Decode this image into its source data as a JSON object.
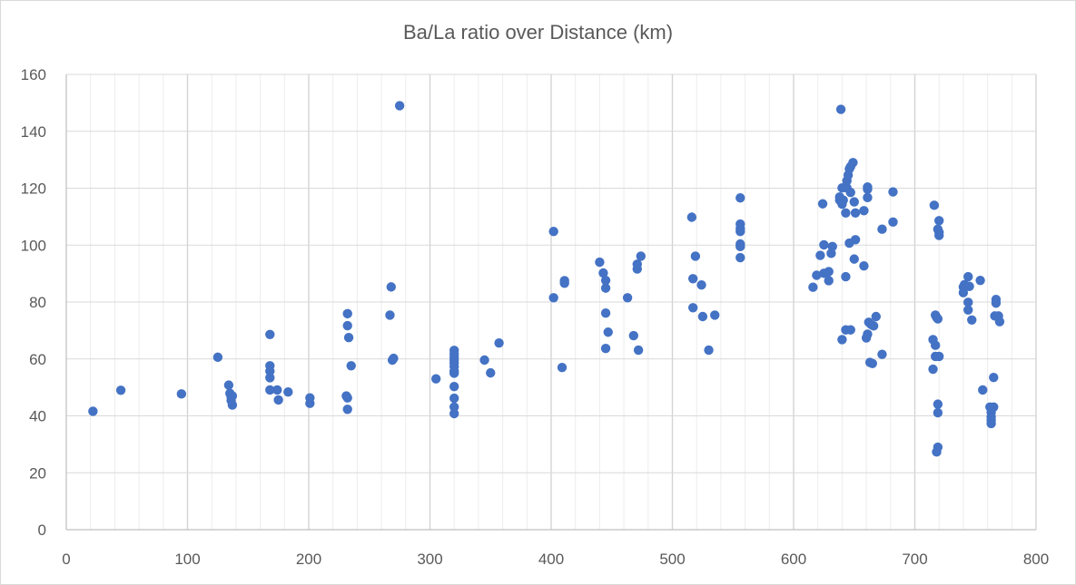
{
  "chart_data": {
    "type": "scatter",
    "title": "Ba/La ratio over Distance (km)",
    "xlabel": "",
    "ylabel": "",
    "xlim": [
      0,
      800
    ],
    "ylim": [
      0,
      160
    ],
    "x_major_ticks": [
      0,
      100,
      200,
      300,
      400,
      500,
      600,
      700,
      800
    ],
    "x_minor_step": 20,
    "y_major_ticks": [
      0,
      20,
      40,
      60,
      80,
      100,
      120,
      140,
      160
    ],
    "grid": true,
    "legend": "none",
    "marker_color": "#4472c4",
    "points": [
      [
        22,
        41.6
      ],
      [
        45,
        49
      ],
      [
        95,
        47.7
      ],
      [
        125,
        60.6
      ],
      [
        134,
        50.8
      ],
      [
        135,
        47.9
      ],
      [
        136,
        46.6
      ],
      [
        136,
        45.4
      ],
      [
        137,
        43.8
      ],
      [
        137,
        47
      ],
      [
        168,
        68.6
      ],
      [
        168,
        57.6
      ],
      [
        168,
        55.7
      ],
      [
        168,
        53.4
      ],
      [
        168,
        49.1
      ],
      [
        174,
        49.1
      ],
      [
        175,
        45.6
      ],
      [
        183,
        48.4
      ],
      [
        201,
        46.3
      ],
      [
        201,
        44.4
      ],
      [
        232,
        75.9
      ],
      [
        232,
        71.7
      ],
      [
        233,
        67.5
      ],
      [
        235,
        57.6
      ],
      [
        231,
        47
      ],
      [
        232,
        46.3
      ],
      [
        232,
        42.3
      ],
      [
        268,
        85.3
      ],
      [
        267,
        75.4
      ],
      [
        269,
        59.6
      ],
      [
        270,
        60.2
      ],
      [
        275,
        149
      ],
      [
        305,
        53
      ],
      [
        320,
        63
      ],
      [
        320,
        61.7
      ],
      [
        320,
        60.6
      ],
      [
        320,
        59.6
      ],
      [
        320,
        58.6
      ],
      [
        320,
        57.3
      ],
      [
        320,
        55.7
      ],
      [
        320,
        55
      ],
      [
        320,
        50.3
      ],
      [
        320,
        46.2
      ],
      [
        320,
        43.1
      ],
      [
        320,
        40.8
      ],
      [
        345,
        59.6
      ],
      [
        350,
        55.1
      ],
      [
        357,
        65.6
      ],
      [
        402,
        104.8
      ],
      [
        402,
        81.5
      ],
      [
        409,
        57
      ],
      [
        411,
        87.5
      ],
      [
        411,
        86.6
      ],
      [
        440,
        94
      ],
      [
        443,
        90.2
      ],
      [
        445,
        87.6
      ],
      [
        445,
        84.9
      ],
      [
        445,
        76.1
      ],
      [
        447,
        69.4
      ],
      [
        445,
        63.7
      ],
      [
        463,
        81.5
      ],
      [
        468,
        68.2
      ],
      [
        471,
        93.3
      ],
      [
        471,
        91.6
      ],
      [
        472,
        63.1
      ],
      [
        474,
        96.1
      ],
      [
        516,
        109.8
      ],
      [
        517,
        88.2
      ],
      [
        517,
        78
      ],
      [
        519,
        96.1
      ],
      [
        524,
        86
      ],
      [
        525,
        74.9
      ],
      [
        530,
        63.1
      ],
      [
        535,
        75.4
      ],
      [
        556,
        116.6
      ],
      [
        556,
        107.4
      ],
      [
        556,
        105.8
      ],
      [
        556,
        104.8
      ],
      [
        556,
        100.4
      ],
      [
        556,
        99.5
      ],
      [
        556,
        95.6
      ],
      [
        639,
        147.7
      ],
      [
        649,
        129
      ],
      [
        647,
        127.6
      ],
      [
        646,
        126.8
      ],
      [
        645,
        124.6
      ],
      [
        644,
        122.6
      ],
      [
        640,
        120.1
      ],
      [
        644,
        120.1
      ],
      [
        647,
        118.5
      ],
      [
        638,
        116.9
      ],
      [
        638,
        115.8
      ],
      [
        641,
        115.8
      ],
      [
        650,
        115.2
      ],
      [
        640,
        114.4
      ],
      [
        624,
        114.5
      ],
      [
        658,
        112.1
      ],
      [
        643,
        111.3
      ],
      [
        651,
        111.3
      ],
      [
        682,
        118.7
      ],
      [
        661,
        120.4
      ],
      [
        661,
        119.6
      ],
      [
        661,
        116.7
      ],
      [
        682,
        108.1
      ],
      [
        673,
        105.6
      ],
      [
        651,
        101.9
      ],
      [
        646,
        100.7
      ],
      [
        625,
        100.1
      ],
      [
        632,
        99.5
      ],
      [
        631,
        97.1
      ],
      [
        622,
        96.4
      ],
      [
        650,
        95.1
      ],
      [
        658,
        92.7
      ],
      [
        619,
        89.4
      ],
      [
        625,
        90.1
      ],
      [
        629,
        90.7
      ],
      [
        643,
        88.9
      ],
      [
        629,
        87.5
      ],
      [
        616,
        85.2
      ],
      [
        662,
        72.9
      ],
      [
        664,
        72.1
      ],
      [
        668,
        74.9
      ],
      [
        666,
        71.6
      ],
      [
        643,
        70.2
      ],
      [
        647,
        70.2
      ],
      [
        661,
        68.7
      ],
      [
        660,
        67.4
      ],
      [
        640,
        66.8
      ],
      [
        673,
        61.6
      ],
      [
        663,
        58.8
      ],
      [
        665,
        58.4
      ],
      [
        716,
        114
      ],
      [
        720,
        108.6
      ],
      [
        719,
        105.6
      ],
      [
        720,
        104.5
      ],
      [
        720,
        103.4
      ],
      [
        717,
        75.4
      ],
      [
        718,
        74.6
      ],
      [
        719,
        74.1
      ],
      [
        715,
        66.8
      ],
      [
        717,
        64.8
      ],
      [
        717,
        60.9
      ],
      [
        720,
        60.9
      ],
      [
        715,
        56.4
      ],
      [
        719,
        44.1
      ],
      [
        719,
        41.1
      ],
      [
        719,
        29
      ],
      [
        718,
        27.3
      ],
      [
        741,
        86.1
      ],
      [
        740,
        85.3
      ],
      [
        745,
        85.5
      ],
      [
        740,
        83.3
      ],
      [
        744,
        88.9
      ],
      [
        754,
        87.6
      ],
      [
        744,
        79.9
      ],
      [
        744,
        77.2
      ],
      [
        747,
        73.7
      ],
      [
        767,
        80.9
      ],
      [
        767,
        79.6
      ],
      [
        766,
        75.1
      ],
      [
        769,
        75.1
      ],
      [
        770,
        73.1
      ],
      [
        765,
        53.5
      ],
      [
        756,
        49.1
      ],
      [
        762,
        43.1
      ],
      [
        765,
        43.1
      ],
      [
        763,
        41.2
      ],
      [
        763,
        39.6
      ],
      [
        763,
        38.5
      ],
      [
        763,
        37.3
      ]
    ]
  }
}
